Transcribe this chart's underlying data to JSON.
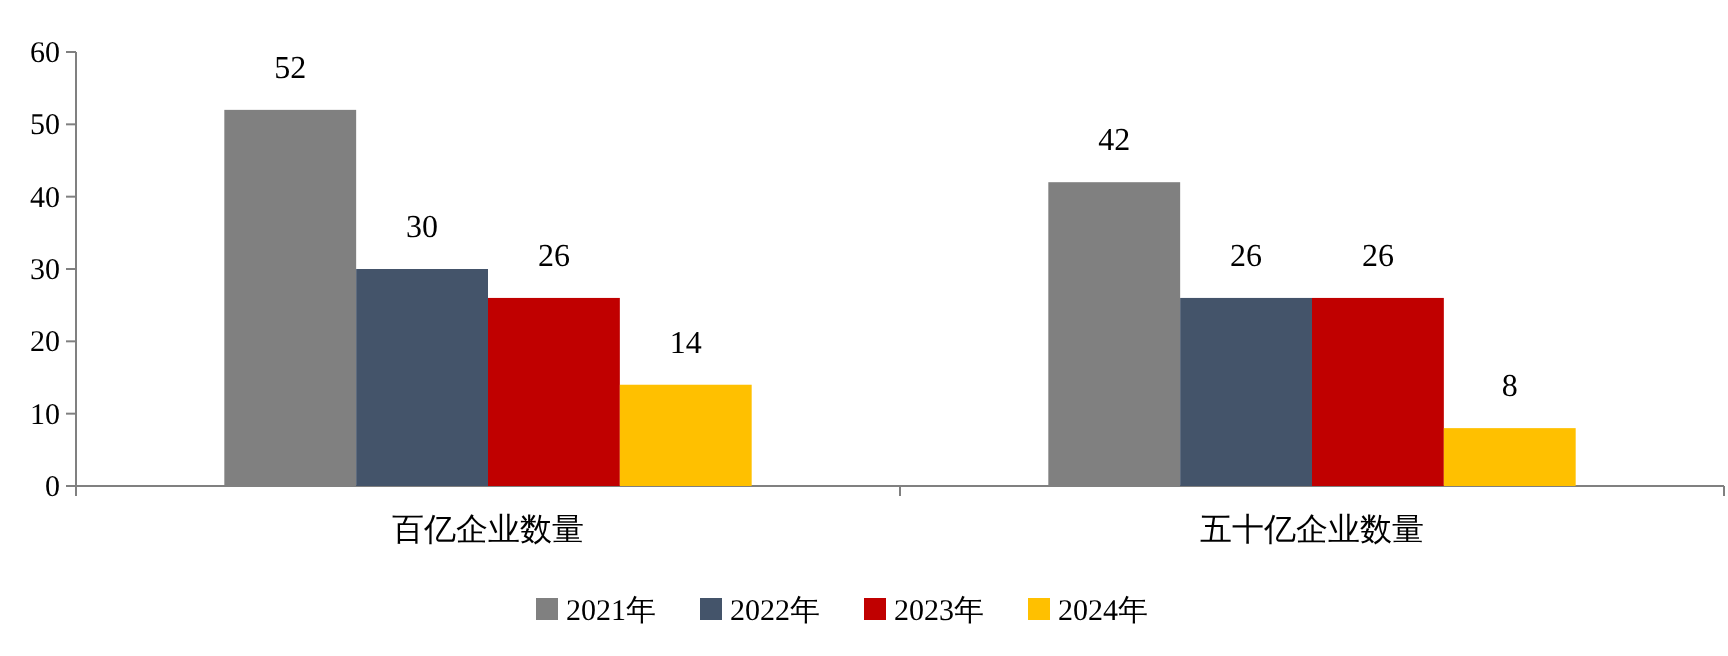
{
  "chart_data": {
    "type": "bar",
    "categories": [
      "百亿企业数量",
      "五十亿企业数量"
    ],
    "series": [
      {
        "name": "2021年",
        "color": "#808080",
        "values": [
          52,
          42
        ]
      },
      {
        "name": "2022年",
        "color": "#44546a",
        "values": [
          30,
          26
        ]
      },
      {
        "name": "2023年",
        "color": "#c00000",
        "values": [
          26,
          26
        ]
      },
      {
        "name": "2024年",
        "color": "#ffc000",
        "values": [
          14,
          8
        ]
      }
    ],
    "ylim": [
      0,
      60
    ],
    "yticks": [
      0,
      10,
      20,
      30,
      40,
      50,
      60
    ],
    "data_labels": true,
    "legend": "bottom"
  }
}
